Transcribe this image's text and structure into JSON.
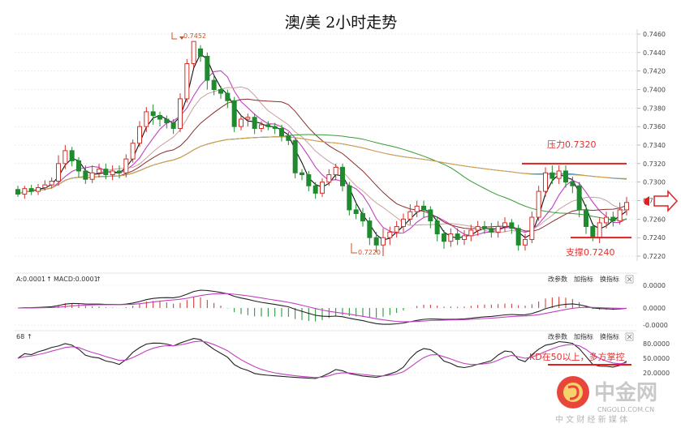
{
  "chart_data": {
    "type": "candlestick",
    "title": "澳/美 2小时走势",
    "price_axis": {
      "ticks": [
        "0.7460",
        "0.7440",
        "0.7420",
        "0.7400",
        "0.7380",
        "0.7360",
        "0.7340",
        "0.7320",
        "0.7300",
        "0.7280",
        "0.7260",
        "0.7240",
        "0.7220"
      ],
      "ylim": [
        0.7205,
        0.747
      ]
    },
    "annotations": {
      "high_label": "0.7452",
      "low_label": "0.7220",
      "resistance_label": "压力0.7320",
      "resistance_value": 0.732,
      "support_label": "支撑0.7240",
      "support_value": 0.724,
      "kd_label": "KD在50以上，多方掌控"
    },
    "candles": [
      [
        0.7292,
        0.7287,
        0.7296,
        0.7284
      ],
      [
        0.7287,
        0.7293,
        0.7296,
        0.7282
      ],
      [
        0.7293,
        0.729,
        0.7297,
        0.7286
      ],
      [
        0.729,
        0.7294,
        0.7298,
        0.7286
      ],
      [
        0.7294,
        0.7297,
        0.7302,
        0.7291
      ],
      [
        0.7297,
        0.7301,
        0.7305,
        0.7293
      ],
      [
        0.7301,
        0.732,
        0.7329,
        0.7296
      ],
      [
        0.732,
        0.7334,
        0.734,
        0.7314
      ],
      [
        0.7334,
        0.7323,
        0.7338,
        0.7317
      ],
      [
        0.7323,
        0.7312,
        0.7327,
        0.7305
      ],
      [
        0.7312,
        0.7303,
        0.7318,
        0.7298
      ],
      [
        0.7303,
        0.731,
        0.7318,
        0.7299
      ],
      [
        0.731,
        0.7314,
        0.732,
        0.7305
      ],
      [
        0.7314,
        0.7308,
        0.732,
        0.7303
      ],
      [
        0.7308,
        0.7312,
        0.7318,
        0.7302
      ],
      [
        0.7312,
        0.731,
        0.7318,
        0.7304
      ],
      [
        0.731,
        0.7325,
        0.733,
        0.7305
      ],
      [
        0.7325,
        0.7342,
        0.7346,
        0.7321
      ],
      [
        0.7342,
        0.736,
        0.7366,
        0.7338
      ],
      [
        0.736,
        0.7376,
        0.7381,
        0.7354
      ],
      [
        0.7376,
        0.7372,
        0.7384,
        0.7362
      ],
      [
        0.7372,
        0.7368,
        0.7376,
        0.736
      ],
      [
        0.7368,
        0.7364,
        0.7372,
        0.7358
      ],
      [
        0.7364,
        0.7358,
        0.7368,
        0.7352
      ],
      [
        0.7358,
        0.739,
        0.7396,
        0.7354
      ],
      [
        0.739,
        0.7428,
        0.7433,
        0.7386
      ],
      [
        0.7428,
        0.7452,
        0.7452,
        0.7424
      ],
      [
        0.7444,
        0.7436,
        0.7448,
        0.743
      ],
      [
        0.7436,
        0.741,
        0.744,
        0.74
      ],
      [
        0.741,
        0.74,
        0.7416,
        0.7394
      ],
      [
        0.74,
        0.7396,
        0.7404,
        0.739
      ],
      [
        0.7396,
        0.7388,
        0.74,
        0.738
      ],
      [
        0.7388,
        0.736,
        0.7392,
        0.7354
      ],
      [
        0.736,
        0.7368,
        0.7372,
        0.7356
      ],
      [
        0.7368,
        0.737,
        0.7374,
        0.736
      ],
      [
        0.737,
        0.7358,
        0.7374,
        0.7352
      ],
      [
        0.7358,
        0.7362,
        0.7366,
        0.7354
      ],
      [
        0.7362,
        0.736,
        0.7366,
        0.7356
      ],
      [
        0.736,
        0.7358,
        0.7364,
        0.7352
      ],
      [
        0.7358,
        0.735,
        0.7362,
        0.7344
      ],
      [
        0.735,
        0.7345,
        0.7354,
        0.734
      ],
      [
        0.7345,
        0.731,
        0.7348,
        0.7304
      ],
      [
        0.731,
        0.7308,
        0.7314,
        0.7302
      ],
      [
        0.7308,
        0.7296,
        0.7312,
        0.729
      ],
      [
        0.7296,
        0.7288,
        0.73,
        0.7282
      ],
      [
        0.7288,
        0.73,
        0.7304,
        0.7284
      ],
      [
        0.73,
        0.7308,
        0.7314,
        0.7296
      ],
      [
        0.7308,
        0.7316,
        0.732,
        0.7302
      ],
      [
        0.7316,
        0.7296,
        0.732,
        0.729
      ],
      [
        0.7296,
        0.727,
        0.73,
        0.7264
      ],
      [
        0.727,
        0.7266,
        0.7276,
        0.726
      ],
      [
        0.7266,
        0.7258,
        0.7272,
        0.7252
      ],
      [
        0.7258,
        0.724,
        0.7262,
        0.7232
      ],
      [
        0.724,
        0.7232,
        0.7246,
        0.7224
      ],
      [
        0.7232,
        0.724,
        0.725,
        0.722
      ],
      [
        0.724,
        0.7246,
        0.7252,
        0.7232
      ],
      [
        0.7246,
        0.7252,
        0.7258,
        0.724
      ],
      [
        0.7252,
        0.726,
        0.7266,
        0.7246
      ],
      [
        0.726,
        0.7268,
        0.7276,
        0.7254
      ],
      [
        0.7268,
        0.7274,
        0.728,
        0.7262
      ],
      [
        0.7274,
        0.727,
        0.728,
        0.7262
      ],
      [
        0.727,
        0.7258,
        0.7274,
        0.725
      ],
      [
        0.7258,
        0.7244,
        0.7262,
        0.7236
      ],
      [
        0.7244,
        0.7236,
        0.7248,
        0.7228
      ],
      [
        0.7236,
        0.7244,
        0.725,
        0.723
      ],
      [
        0.7244,
        0.7238,
        0.725,
        0.7232
      ],
      [
        0.7238,
        0.7242,
        0.7248,
        0.7232
      ],
      [
        0.7242,
        0.7248,
        0.7254,
        0.7236
      ],
      [
        0.7248,
        0.7252,
        0.7258,
        0.7242
      ],
      [
        0.7252,
        0.725,
        0.7258,
        0.7244
      ],
      [
        0.725,
        0.7246,
        0.7256,
        0.724
      ],
      [
        0.7246,
        0.7252,
        0.7258,
        0.724
      ],
      [
        0.7252,
        0.7256,
        0.7262,
        0.7246
      ],
      [
        0.7256,
        0.725,
        0.726,
        0.7244
      ],
      [
        0.725,
        0.7232,
        0.7254,
        0.7226
      ],
      [
        0.7232,
        0.7238,
        0.7244,
        0.7226
      ],
      [
        0.7238,
        0.7262,
        0.7268,
        0.7234
      ],
      [
        0.7262,
        0.729,
        0.7296,
        0.7258
      ],
      [
        0.729,
        0.731,
        0.7316,
        0.7284
      ],
      [
        0.731,
        0.7304,
        0.7318,
        0.7298
      ],
      [
        0.7304,
        0.7312,
        0.7318,
        0.7298
      ],
      [
        0.7312,
        0.73,
        0.7318,
        0.7294
      ],
      [
        0.73,
        0.7296,
        0.7306,
        0.7288
      ],
      [
        0.7296,
        0.727,
        0.73,
        0.7262
      ],
      [
        0.727,
        0.7252,
        0.7276,
        0.7244
      ],
      [
        0.7252,
        0.724,
        0.7256,
        0.7236
      ],
      [
        0.724,
        0.7256,
        0.7262,
        0.7234
      ],
      [
        0.7256,
        0.7262,
        0.7268,
        0.725
      ],
      [
        0.7262,
        0.7258,
        0.7268,
        0.7252
      ],
      [
        0.7258,
        0.727,
        0.7278,
        0.7254
      ],
      [
        0.727,
        0.7278,
        0.7284,
        0.7264
      ]
    ],
    "macd_panel": {
      "label_a": "A:0.0001",
      "label_macd": "MACD:0.0001",
      "menu": [
        "改参数",
        "加指标",
        "换指标"
      ],
      "ticks": [
        "0.0000",
        "0.0000",
        "-0.0000"
      ]
    },
    "kd_panel": {
      "label": "68",
      "menu": [
        "改参数",
        "加指标",
        "换指标"
      ],
      "ticks": [
        "80.0000",
        "50.0000",
        "20.0000"
      ]
    }
  },
  "watermark": {
    "brand": "中金网",
    "url": "CNGOLD.COM.CN",
    "tagline": "中 文 财 经 新 媒 体"
  },
  "colors": {
    "up": "#d0302a",
    "down": "#1f8a2e",
    "ma_fast": "#111111",
    "ma_k": "#c040c0",
    "ma_slow": "#c8a0a0",
    "ma_mid": "#8b2c2c",
    "ma_green": "#3a9a3a",
    "ma_blue": "#2f86c8",
    "ma_orange": "#e0a040"
  }
}
